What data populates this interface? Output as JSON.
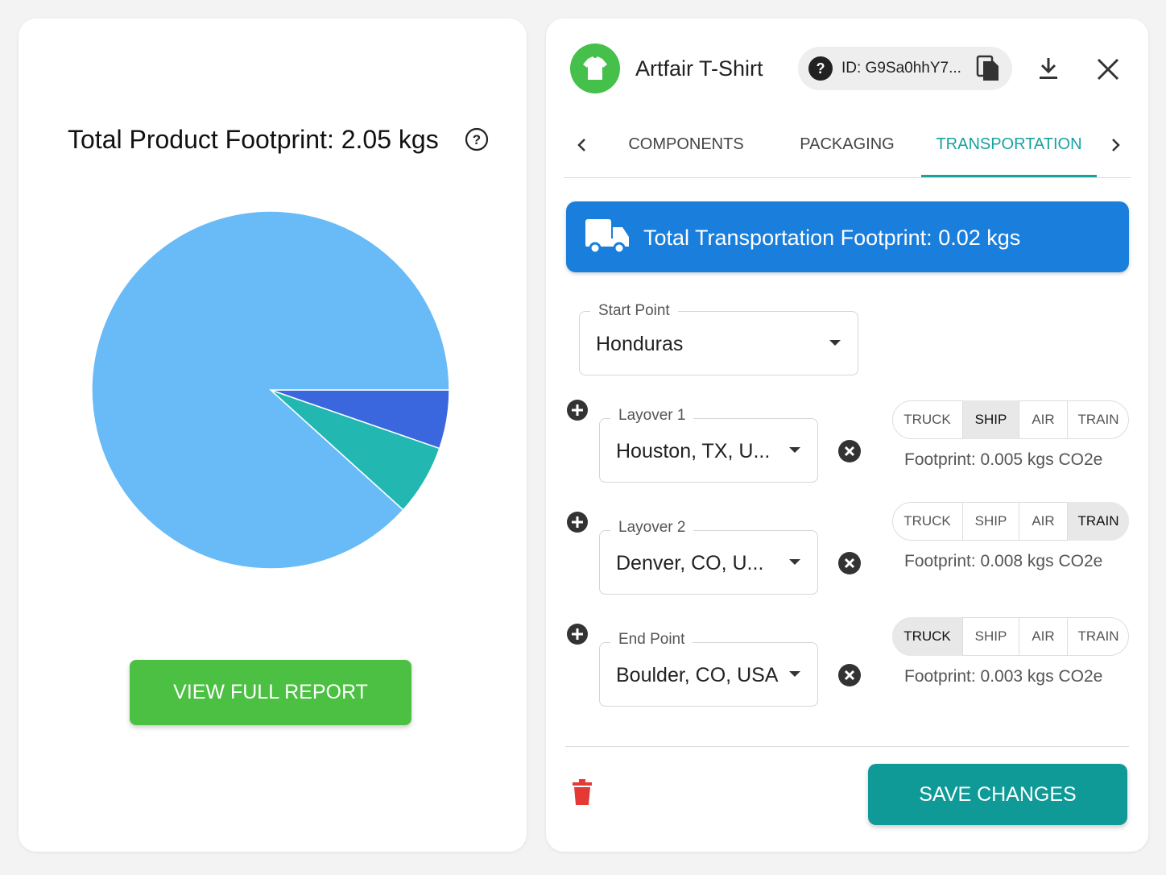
{
  "chart_data": {
    "type": "pie",
    "title": "Total Product Footprint: 2.05 kgs",
    "values": [
      5.3,
      6.4,
      88.3
    ],
    "colors": [
      "#3a67dd",
      "#22b8b1",
      "#69bbf7"
    ]
  },
  "report_button": "VIEW FULL REPORT",
  "header": {
    "product": "Artfair T-Shirt",
    "id": "ID: G9Sa0hhY7..."
  },
  "tabs": {
    "items": [
      "COMPONENTS",
      "PACKAGING",
      "TRANSPORTATION"
    ],
    "active": 2
  },
  "banner": "Total Transportation Footprint: 0.02 kgs",
  "start": {
    "label": "Start Point",
    "value": "Honduras"
  },
  "legs": [
    {
      "label": "Layover 1",
      "value": "Houston, TX, U...",
      "modes": [
        "TRUCK",
        "SHIP",
        "AIR",
        "TRAIN"
      ],
      "selected": 1,
      "footprint": "Footprint: 0.005 kgs CO2e"
    },
    {
      "label": "Layover 2",
      "value": "Denver, CO, U...",
      "modes": [
        "TRUCK",
        "SHIP",
        "AIR",
        "TRAIN"
      ],
      "selected": 3,
      "footprint": "Footprint: 0.008 kgs CO2e"
    },
    {
      "label": "End Point",
      "value": "Boulder, CO, USA",
      "modes": [
        "TRUCK",
        "SHIP",
        "AIR",
        "TRAIN"
      ],
      "selected": 0,
      "footprint": "Footprint: 0.003 kgs CO2e"
    }
  ],
  "save_button": "SAVE CHANGES"
}
